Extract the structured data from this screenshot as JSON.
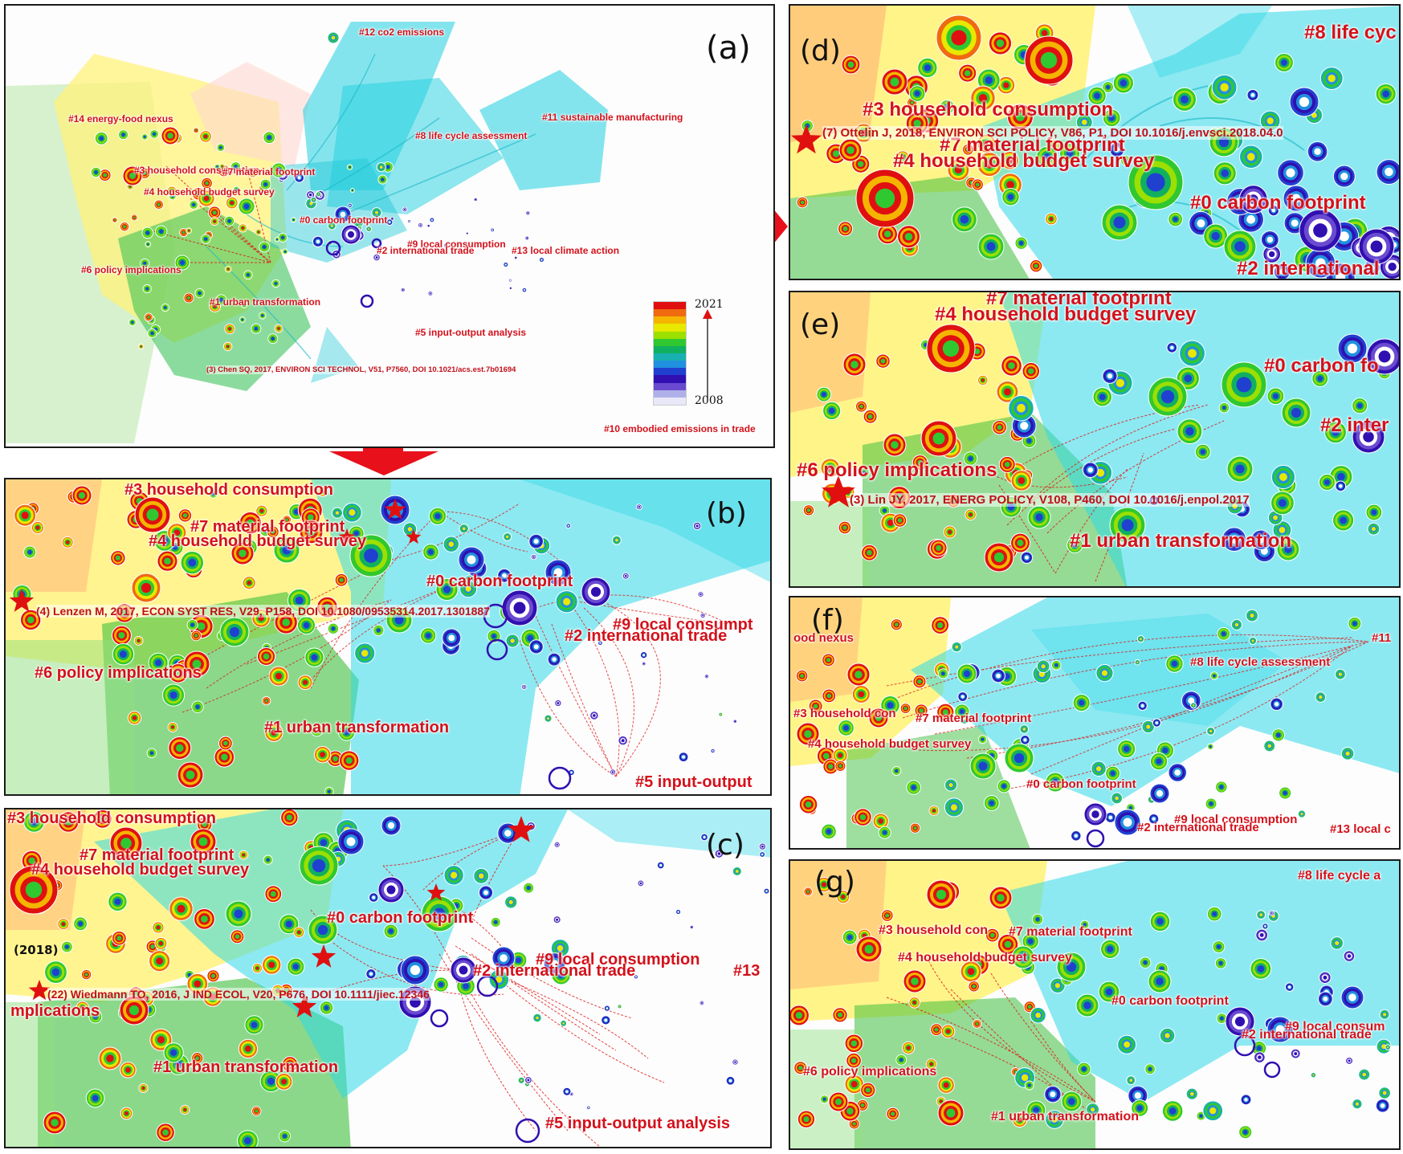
{
  "panels": {
    "a": {
      "label": "(a)",
      "clusters": {
        "c12": "#12 co2 emissions",
        "c14": "#14 energy-food nexus",
        "c11": "#11 sustainable manufacturing",
        "c8": "#8 life cycle assessment",
        "c3": "#3 household consumption",
        "c7": "#7 material footprint",
        "c4": "#4 household budget survey",
        "c0": "#0 carbon footprint",
        "c9": "#9 local consumption",
        "c2": "#2 international trade",
        "c13": "#13 local climate action",
        "c6": "#6 policy implications",
        "c1": "#1 urban transformation",
        "c5": "#5 input-output analysis",
        "c10": "#10 embodied emissions in trade"
      },
      "reference": "(3) Chen SQ, 2017, ENVIRON SCI TECHNOL, V51, P7560, DOI 10.1021/acs.est.7b01694",
      "legend": {
        "top_year": "2021",
        "bottom_year": "2008",
        "colors": [
          "#e01010",
          "#f06a10",
          "#f4b400",
          "#e8e800",
          "#9be000",
          "#30c830",
          "#10b060",
          "#18b0b0",
          "#2090e0",
          "#2040d0",
          "#3010b0",
          "#6a4ad0",
          "#b0b0e8",
          "#e8e8f8"
        ]
      }
    },
    "b": {
      "label": "(b)",
      "clusters": {
        "c3": "#3 household consumption",
        "c7": "#7 material footprint",
        "c4": "#4 household budget survey",
        "c0": "#0 carbon footprint",
        "c9": "#9 local consumpt",
        "c2": "#2 international trade",
        "c6": "#6 policy implications",
        "c1": "#1 urban transformation",
        "c5": "#5 input-output"
      },
      "reference": "(4) Lenzen M, 2017, ECON SYST RES, V29, P158, DOI 10.1080/09535314.2017.1301887"
    },
    "c": {
      "label": "(c)",
      "clusters": {
        "c3": "#3 household consumption",
        "c7": "#7 material footprint",
        "c4": "#4 household budget survey",
        "c0": "#0 carbon footprint",
        "c9": "#9 local consumption",
        "c2": "#2 international trade",
        "c13": "#13",
        "c6": "mplications",
        "c1": "#1 urban transformation",
        "c5": "#5 input-output analysis"
      },
      "year_tag": "(2018)",
      "reference": "(22) Wiedmann TO, 2016, J IND ECOL, V20, P676, DOI 10.1111/jiec.12346"
    },
    "d": {
      "label": "(d)",
      "clusters": {
        "c8": "#8 life cyc",
        "c3": "#3 household consumption",
        "c7": "#7 material footprint",
        "c4": "#4 household budget survey",
        "c0": "#0 carbon footprint",
        "c2": "#2 international"
      },
      "reference": "(7) Ottelin J, 2018, ENVIRON SCI POLICY, V86, P1, DOI 10.1016/j.envsci.2018.04.0"
    },
    "e": {
      "label": "(e)",
      "clusters": {
        "c7": "#7 material footprint",
        "c4": "#4 household budget survey",
        "c0": "#0 carbon fo",
        "c2": "#2 inter",
        "c6": "#6 policy implications",
        "c1": "#1 urban transformation"
      },
      "reference": "(3) Lin JY, 2017, ENERG POLICY, V108, P460, DOI 10.1016/j.enpol.2017"
    },
    "f": {
      "label": "(f)",
      "clusters": {
        "c14": "ood nexus",
        "c11": "#11",
        "c8": "#8 life cycle assessment",
        "c3": "#3 household con",
        "c7": "#7 material footprint",
        "c4": "#4 household budget survey",
        "c0": "#0 carbon footprint",
        "c9": "#9 local consumption",
        "c2": "#2 international trade",
        "c13": "#13 local c"
      }
    },
    "g": {
      "label": "(g)",
      "clusters": {
        "c8": "#8 life cycle a",
        "c3": "#3 household con",
        "c7": "#7 material footprint",
        "c4": "#4 household budget survey",
        "c0": "#0 carbon footprint",
        "c9": "#9 local consum",
        "c2": "#2 international trade",
        "c6": "#6 policy implications",
        "c1": "#1 urban transformation"
      }
    }
  }
}
